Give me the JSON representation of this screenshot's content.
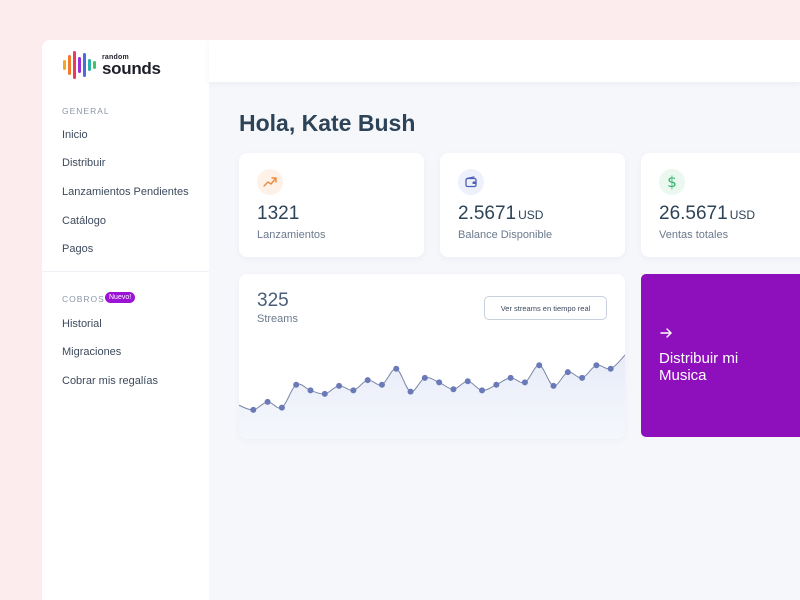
{
  "brand": {
    "small": "random",
    "big": "sounds"
  },
  "sidebar": {
    "general_label": "GENERAL",
    "items": [
      "Inicio",
      "Distribuir",
      "Lanzamientos Pendientes",
      "Catálogo",
      "Pagos"
    ],
    "cobros_label": "COBROS",
    "cobros_badge": "Nuevo!",
    "cobros_items": [
      "Historial",
      "Migraciones",
      "Cobrar mis regalías"
    ]
  },
  "greeting": "Hola, Kate Bush",
  "stats": [
    {
      "icon": "trending-up-icon",
      "value": "1321",
      "unit": "",
      "label": "Lanzamientos"
    },
    {
      "icon": "wallet-icon",
      "value": "2.5671",
      "unit": "USD",
      "label": "Balance Disponible"
    },
    {
      "icon": "dollar-icon",
      "value": "26.5671",
      "unit": "USD",
      "label": "Ventas totales"
    }
  ],
  "streams": {
    "value": "325",
    "label": "Streams",
    "button_label": "Ver streams en tiempo real"
  },
  "chart_data": {
    "type": "line",
    "values": [
      12,
      8,
      15,
      10,
      30,
      25,
      22,
      29,
      25,
      34,
      30,
      44,
      24,
      36,
      32,
      26,
      33,
      25,
      30,
      36,
      32,
      47,
      29,
      41,
      36,
      47,
      44,
      56
    ],
    "ylim": [
      0,
      70
    ],
    "grid": false
  },
  "cta": {
    "label": "Distribuir mi Musica"
  },
  "colors": {
    "accent": "#8e0fbc",
    "line": "#6a7ab8",
    "text": "#2d4357"
  }
}
